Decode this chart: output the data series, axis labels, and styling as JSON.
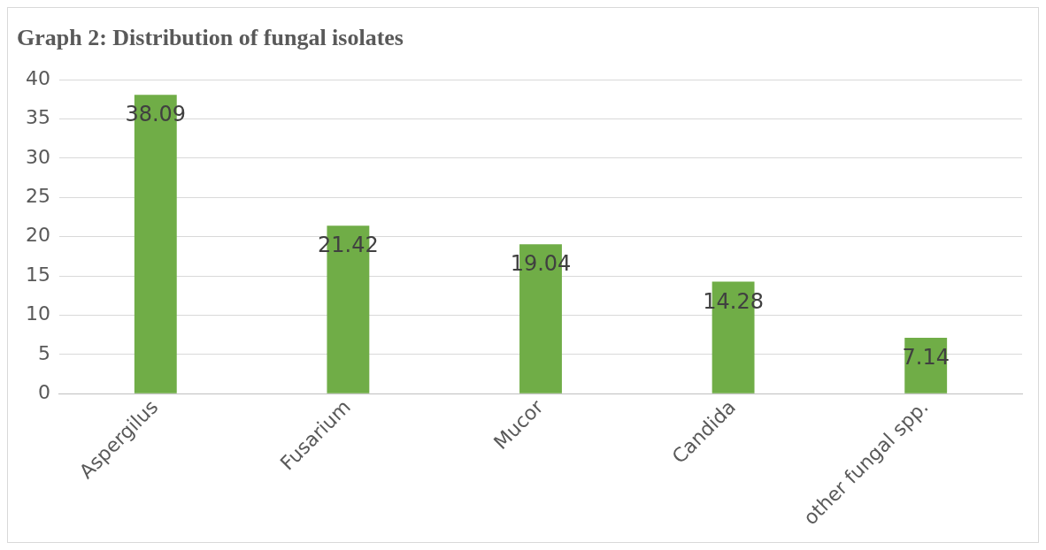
{
  "chart_data": {
    "type": "bar",
    "title": "Graph 2: Distribution of fungal isolates",
    "categories": [
      "Aspergilus",
      "Fusarium",
      "Mucor",
      "Candida",
      "other fungal spp."
    ],
    "values": [
      38.09,
      21.42,
      19.04,
      14.28,
      7.14
    ],
    "color": "#70ad47",
    "ylim": [
      0,
      40
    ],
    "yticks": [
      0,
      5,
      10,
      15,
      20,
      25,
      30,
      35,
      40
    ],
    "grid": "y",
    "data_labels": true,
    "legend": false
  }
}
